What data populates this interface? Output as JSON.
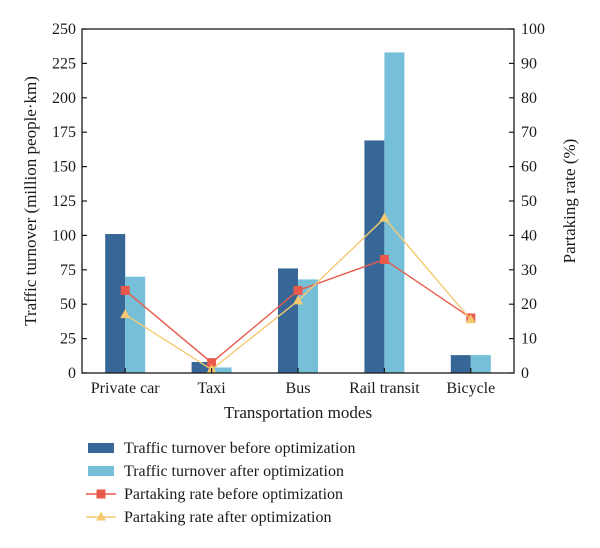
{
  "chart_data": {
    "type": "bar",
    "categories": [
      "Private car",
      "Taxi",
      "Bus",
      "Rail transit",
      "Bicycle"
    ],
    "xlabel": "Transportation modes",
    "ylabel": "Traffic turnover (million people·km)",
    "y2label": "Partaking rate (%)",
    "ylim": [
      0,
      250
    ],
    "y2lim": [
      0,
      100
    ],
    "yticks": [
      "0",
      "25",
      "50",
      "75",
      "100",
      "125",
      "150",
      "175",
      "200",
      "225",
      "250"
    ],
    "y2ticks": [
      "0",
      "10",
      "20",
      "30",
      "40",
      "50",
      "60",
      "70",
      "80",
      "90",
      "100"
    ],
    "grid": false,
    "legend_position": "bottom",
    "series": [
      {
        "name": "Traffic turnover before optimization",
        "kind": "bar",
        "axis": "left",
        "color": "#376796",
        "values": [
          101,
          8,
          76,
          169,
          13
        ]
      },
      {
        "name": "Traffic turnover after optimization",
        "kind": "bar",
        "axis": "left",
        "color": "#76bfd8",
        "values": [
          70,
          4,
          68,
          233,
          13
        ]
      },
      {
        "name": "Partaking rate before optimization",
        "kind": "line",
        "marker": "square",
        "axis": "right",
        "color": "#e8594b",
        "values": [
          24,
          3,
          24,
          33,
          16
        ]
      },
      {
        "name": "Partaking rate after optimization",
        "kind": "line",
        "marker": "triangle",
        "axis": "right",
        "color": "#f6c970",
        "values": [
          17,
          1,
          21,
          45,
          15.5
        ]
      }
    ]
  }
}
